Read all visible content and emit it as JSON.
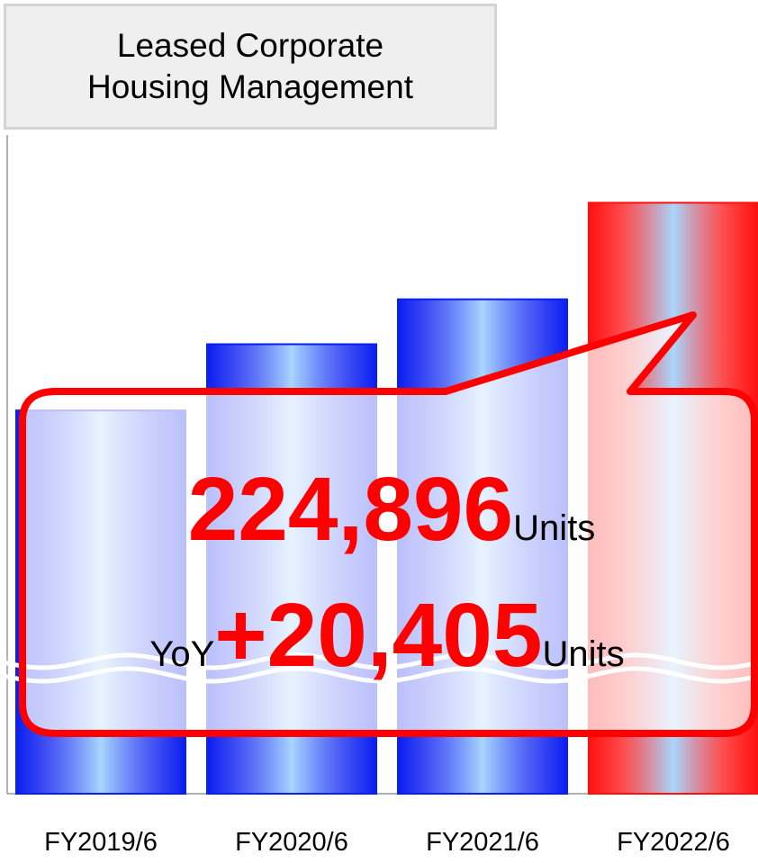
{
  "chart_data": {
    "type": "bar",
    "title": "Leased Corporate Housing Management",
    "categories": [
      "FY2019/6",
      "FY2020/6",
      "FY2021/6",
      "FY2022/6"
    ],
    "values": [
      181000,
      195000,
      204491,
      224896
    ],
    "colors": [
      "#0a1ef0",
      "#0a1ef0",
      "#0a1ef0",
      "#ff1010"
    ],
    "ylim": [
      100000,
      228000
    ],
    "axis_break": true,
    "callout": {
      "value_label": "224,896",
      "unit": "Units",
      "change_prefix": "YoY",
      "change": "+20,405",
      "change_unit": "Units"
    }
  }
}
